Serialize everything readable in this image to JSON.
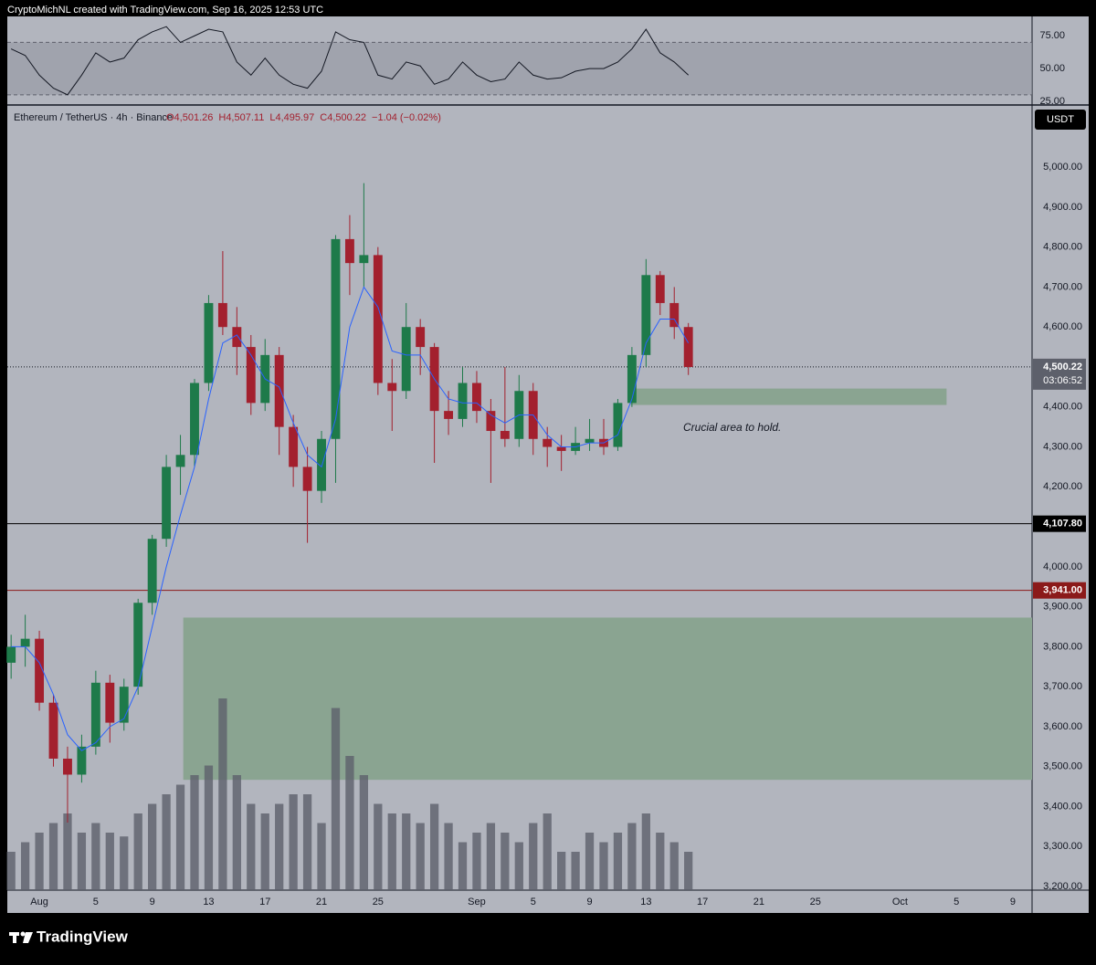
{
  "header": {
    "title": "CryptoMichNL created with TradingView.com, Sep 16, 2025 12:53 UTC"
  },
  "chart_data": {
    "type": "candlestick",
    "symbol": "Ethereum / TetherUS · 4h · Binance",
    "ohlc_legend": [
      "O4,501.26",
      "H4,507.11",
      "L4,495.97",
      "C4,500.22",
      "−1.04 (−0.02%)"
    ],
    "currency": "USDT",
    "up_color": "#1e7a4a",
    "down_color": "#a3202e",
    "x": [
      -2,
      -1,
      0,
      1,
      2,
      3,
      4,
      5,
      6,
      7,
      8,
      9,
      10,
      11,
      12,
      13,
      14,
      15,
      16,
      17,
      18,
      19,
      20,
      21,
      22,
      23,
      24,
      25,
      26,
      27,
      28,
      29,
      30,
      31,
      32,
      33,
      34,
      35,
      36,
      37,
      38,
      39,
      40,
      41,
      42,
      43,
      44,
      45,
      46
    ],
    "open": [
      3760,
      3800,
      3820,
      3660,
      3520,
      3480,
      3550,
      3710,
      3610,
      3700,
      3910,
      4070,
      4250,
      4280,
      4460,
      4660,
      4600,
      4550,
      4410,
      4530,
      4350,
      4250,
      4190,
      4320,
      4820,
      4760,
      4780,
      4460,
      4440,
      4600,
      4550,
      4390,
      4370,
      4460,
      4390,
      4340,
      4320,
      4440,
      4320,
      4300,
      4290,
      4310,
      4320,
      4300,
      4410,
      4530,
      4730,
      4660,
      4600
    ],
    "high": [
      3830,
      3880,
      3840,
      3680,
      3550,
      3580,
      3740,
      3730,
      3720,
      3920,
      4080,
      4280,
      4330,
      4470,
      4680,
      4790,
      4650,
      4580,
      4570,
      4550,
      4380,
      4300,
      4340,
      4830,
      4880,
      4960,
      4800,
      4520,
      4660,
      4620,
      4560,
      4440,
      4500,
      4490,
      4420,
      4500,
      4480,
      4460,
      4350,
      4330,
      4350,
      4370,
      4370,
      4420,
      4550,
      4770,
      4740,
      4700,
      4610
    ],
    "low": [
      3720,
      3750,
      3640,
      3500,
      3360,
      3460,
      3530,
      3560,
      3590,
      3680,
      3880,
      4050,
      4180,
      4250,
      4440,
      4580,
      4480,
      4380,
      4390,
      4280,
      4200,
      4060,
      4160,
      4210,
      4680,
      4700,
      4430,
      4340,
      4420,
      4480,
      4260,
      4330,
      4350,
      4360,
      4210,
      4300,
      4300,
      4280,
      4250,
      4240,
      4280,
      4290,
      4280,
      4290,
      4400,
      4500,
      4630,
      4570,
      4480
    ],
    "close": [
      3800,
      3820,
      3660,
      3520,
      3480,
      3550,
      3710,
      3610,
      3700,
      3910,
      4070,
      4250,
      4280,
      4460,
      4660,
      4600,
      4550,
      4410,
      4530,
      4350,
      4250,
      4190,
      4320,
      4820,
      4760,
      4780,
      4460,
      4440,
      4600,
      4550,
      4390,
      4370,
      4460,
      4390,
      4340,
      4320,
      4440,
      4320,
      4300,
      4290,
      4310,
      4320,
      4300,
      4410,
      4530,
      4730,
      4660,
      4600,
      4500
    ],
    "ma": {
      "color": "#2962ff",
      "values": [
        3800,
        3800,
        3760,
        3680,
        3580,
        3540,
        3560,
        3600,
        3620,
        3700,
        3850,
        4000,
        4130,
        4250,
        4420,
        4560,
        4580,
        4530,
        4470,
        4450,
        4360,
        4280,
        4250,
        4370,
        4600,
        4700,
        4650,
        4540,
        4530,
        4530,
        4470,
        4420,
        4410,
        4410,
        4380,
        4360,
        4380,
        4380,
        4330,
        4300,
        4300,
        4310,
        4310,
        4330,
        4420,
        4560,
        4620,
        4620,
        4560
      ]
    },
    "volume": {
      "color": "#5d606b",
      "values": [
        20,
        25,
        30,
        35,
        40,
        30,
        35,
        30,
        28,
        40,
        45,
        50,
        55,
        60,
        65,
        100,
        60,
        45,
        40,
        45,
        50,
        50,
        35,
        95,
        70,
        60,
        45,
        40,
        40,
        35,
        45,
        35,
        25,
        30,
        35,
        30,
        25,
        35,
        40,
        20,
        20,
        30,
        25,
        30,
        35,
        40,
        30,
        25,
        20
      ]
    },
    "xlim": [
      -2.27,
      70.36
    ],
    "xticks": [
      {
        "value": 0,
        "label": "Aug"
      },
      {
        "value": 4,
        "label": "5"
      },
      {
        "value": 8,
        "label": "9"
      },
      {
        "value": 12,
        "label": "13"
      },
      {
        "value": 16,
        "label": "17"
      },
      {
        "value": 20,
        "label": "21"
      },
      {
        "value": 24,
        "label": "25"
      },
      {
        "value": 31,
        "label": "Sep"
      },
      {
        "value": 35,
        "label": "5"
      },
      {
        "value": 39,
        "label": "9"
      },
      {
        "value": 43,
        "label": "13"
      },
      {
        "value": 47,
        "label": "17"
      },
      {
        "value": 51,
        "label": "21"
      },
      {
        "value": 55,
        "label": "25"
      },
      {
        "value": 61,
        "label": "Oct"
      },
      {
        "value": 65,
        "label": "5"
      },
      {
        "value": 69,
        "label": "9"
      }
    ],
    "ylim": [
      3191,
      5151
    ],
    "yticks": [
      {
        "value": 3200,
        "label": "3,200.00"
      },
      {
        "value": 3300,
        "label": "3,300.00"
      },
      {
        "value": 3400,
        "label": "3,400.00"
      },
      {
        "value": 3500,
        "label": "3,500.00"
      },
      {
        "value": 3600,
        "label": "3,600.00"
      },
      {
        "value": 3700,
        "label": "3,700.00"
      },
      {
        "value": 3800,
        "label": "3,800.00"
      },
      {
        "value": 3900,
        "label": "3,900.00"
      },
      {
        "value": 4000,
        "label": "4,000.00"
      },
      {
        "value": 4100,
        "label": "4,100.00"
      },
      {
        "value": 4200,
        "label": "4,200.00"
      },
      {
        "value": 4300,
        "label": "4,300.00"
      },
      {
        "value": 4400,
        "label": "4,400.00"
      },
      {
        "value": 4500,
        "label": "4,500.00"
      },
      {
        "value": 4600,
        "label": "4,600.00"
      },
      {
        "value": 4700,
        "label": "4,700.00"
      },
      {
        "value": 4800,
        "label": "4,800.00"
      },
      {
        "value": 4900,
        "label": "4,900.00"
      },
      {
        "value": 5000,
        "label": "5,000.00"
      }
    ],
    "price_lines": [
      {
        "value": 4107.8,
        "label": "4,107.80",
        "color": "#000000"
      },
      {
        "value": 3941,
        "label": "3,941.00",
        "color": "#8b1a1a"
      }
    ],
    "last_price": {
      "value": 4500.22,
      "label": "4,500.22",
      "countdown": "03:06:52"
    },
    "zones": [
      {
        "x": [
          10.2,
          70.36
        ],
        "y": [
          3467,
          3873
        ],
        "color": "#8aa491"
      },
      {
        "x": [
          41.9,
          64.3
        ],
        "y": [
          4405,
          4446
        ],
        "color": "#8aa491"
      }
    ],
    "annotation": "Crucial area to hold.",
    "rsi": {
      "color": "#131722",
      "band": [
        30,
        70
      ],
      "ylim": [
        23.6,
        89.8
      ],
      "yticks": [
        {
          "value": 25,
          "label": "25.00"
        },
        {
          "value": 50,
          "label": "50.00"
        },
        {
          "value": 75,
          "label": "75.00"
        }
      ],
      "values": [
        65,
        60,
        45,
        35,
        30,
        45,
        62,
        55,
        58,
        72,
        78,
        82,
        70,
        75,
        80,
        78,
        55,
        45,
        58,
        45,
        38,
        35,
        48,
        78,
        72,
        70,
        45,
        42,
        55,
        52,
        38,
        42,
        55,
        45,
        40,
        42,
        55,
        45,
        42,
        43,
        48,
        50,
        50,
        55,
        65,
        80,
        62,
        55,
        45
      ]
    }
  },
  "footer": {
    "brand": "TradingView"
  }
}
